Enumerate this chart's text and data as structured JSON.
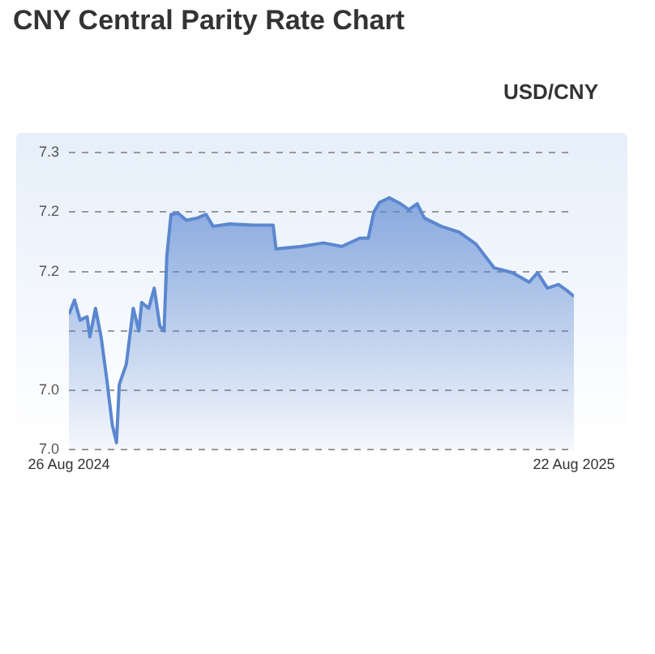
{
  "chart_data": {
    "type": "area",
    "title": "CNY Central Parity Rate Chart",
    "subtitle": "USD/CNY",
    "x": [
      "2024-08-26",
      "2024-08-30",
      "2024-09-03",
      "2024-09-08",
      "2024-09-10",
      "2024-09-14",
      "2024-09-18",
      "2024-09-22",
      "2024-09-26",
      "2024-09-29",
      "2024-10-01",
      "2024-10-06",
      "2024-10-11",
      "2024-10-15",
      "2024-10-17",
      "2024-10-22",
      "2024-10-26",
      "2024-10-30",
      "2024-11-02",
      "2024-11-04",
      "2024-11-07",
      "2024-11-12",
      "2024-11-18",
      "2024-11-26",
      "2024-12-02",
      "2024-12-07",
      "2024-12-19",
      "2025-01-05",
      "2025-01-19",
      "2025-01-21",
      "2025-02-08",
      "2025-02-24",
      "2025-03-09",
      "2025-03-22",
      "2025-03-28",
      "2025-04-01",
      "2025-04-05",
      "2025-04-12",
      "2025-04-20",
      "2025-04-26",
      "2025-05-02",
      "2025-05-07",
      "2025-05-19",
      "2025-06-01",
      "2025-06-13",
      "2025-06-26",
      "2025-07-09",
      "2025-07-21",
      "2025-07-27",
      "2025-08-03",
      "2025-08-11",
      "2025-08-17",
      "2025-08-22"
    ],
    "series": [
      {
        "color": "#5b87d0",
        "values": [
          7.114,
          7.126,
          7.109,
          7.112,
          7.095,
          7.119,
          7.095,
          7.06,
          7.021,
          7.006,
          7.055,
          7.072,
          7.119,
          7.1,
          7.124,
          7.119,
          7.136,
          7.104,
          7.1,
          7.163,
          7.198,
          7.199,
          7.193,
          7.195,
          7.198,
          7.188,
          7.19,
          7.189,
          7.189,
          7.169,
          7.171,
          7.174,
          7.171,
          7.178,
          7.178,
          7.2,
          7.208,
          7.212,
          7.207,
          7.202,
          7.207,
          7.195,
          7.188,
          7.183,
          7.173,
          7.153,
          7.149,
          7.141,
          7.149,
          7.136,
          7.139,
          7.134,
          7.129
        ]
      }
    ],
    "xlim": [
      "2024-08-26",
      "2025-08-22"
    ],
    "xticks": [
      {
        "value": "2024-08-26",
        "label": "26 Aug 2024"
      },
      {
        "value": "2025-08-22",
        "label": "22 Aug 2025"
      }
    ],
    "ylim": [
      7.0,
      7.25
    ],
    "yticks": [
      {
        "value": 7.0,
        "label": "7.0"
      },
      {
        "value": 7.05,
        "label": "7.0"
      },
      {
        "value": 7.1,
        "label": null
      },
      {
        "value": 7.15,
        "label": "7.2"
      },
      {
        "value": 7.2,
        "label": "7.2"
      },
      {
        "value": 7.25,
        "label": "7.3"
      }
    ],
    "grid": "y",
    "marker": "none",
    "line_style": "solid"
  }
}
